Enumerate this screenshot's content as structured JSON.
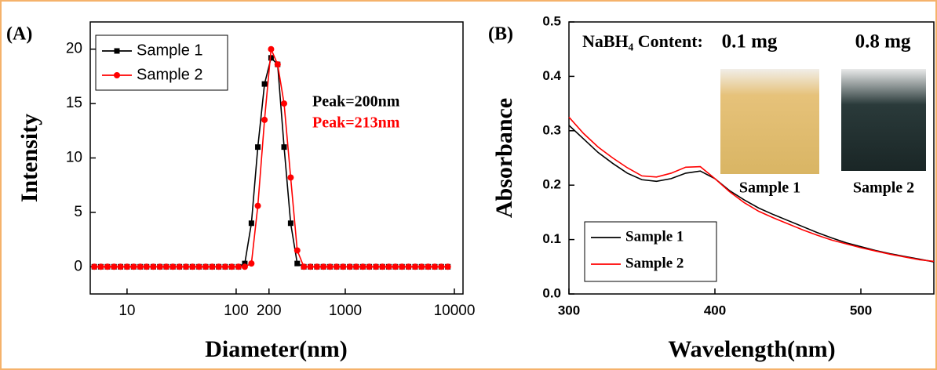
{
  "chart_data": [
    {
      "type": "line",
      "panel_label": "(A)",
      "xlabel": "Diameter(nm)",
      "ylabel": "Intensity",
      "xlog": true,
      "xlim": [
        4.6,
        12000
      ],
      "xticks": [
        10,
        100,
        200,
        1000,
        10000
      ],
      "ylim": [
        -2.5,
        22.5
      ],
      "yticks": [
        0,
        5,
        10,
        15,
        20
      ],
      "legend": "upper left",
      "markers": true,
      "x": [
        5.01,
        5.75,
        6.61,
        7.59,
        8.71,
        10,
        11.5,
        13.2,
        15.1,
        17.4,
        20,
        22.9,
        26.3,
        30.2,
        34.7,
        39.8,
        45.7,
        52.5,
        60.3,
        69.2,
        79.4,
        91.2,
        105,
        120,
        138,
        158,
        182,
        209,
        240,
        275,
        316,
        363,
        417,
        479,
        550,
        631,
        724,
        832,
        955,
        1100,
        1260,
        1450,
        1660,
        1910,
        2190,
        2510,
        2880,
        3310,
        3800,
        4370,
        5010,
        5750,
        6610,
        7590,
        8710
      ],
      "series": [
        {
          "name": "Sample 1",
          "color": "#000000",
          "marker": "square",
          "values": [
            0,
            0,
            0,
            0,
            0,
            0,
            0,
            0,
            0,
            0,
            0,
            0,
            0,
            0,
            0,
            0,
            0,
            0,
            0,
            0,
            0,
            0,
            0,
            0.3,
            4,
            11,
            16.8,
            19.2,
            18.6,
            11,
            4,
            0.3,
            0,
            0,
            0,
            0,
            0,
            0,
            0,
            0,
            0,
            0,
            0,
            0,
            0,
            0,
            0,
            0,
            0,
            0,
            0,
            0,
            0,
            0,
            0
          ]
        },
        {
          "name": "Sample 2",
          "color": "#ff0000",
          "marker": "circle",
          "values": [
            0,
            0,
            0,
            0,
            0,
            0,
            0,
            0,
            0,
            0,
            0,
            0,
            0,
            0,
            0,
            0,
            0,
            0,
            0,
            0,
            0,
            0,
            0,
            0,
            0.3,
            5.6,
            13.5,
            20,
            18.6,
            15,
            8.2,
            1.5,
            0,
            0,
            0,
            0,
            0,
            0,
            0,
            0,
            0,
            0,
            0,
            0,
            0,
            0,
            0,
            0,
            0,
            0,
            0,
            0,
            0,
            0,
            0
          ]
        }
      ],
      "annotations": [
        {
          "text": "Peak=200nm",
          "color": "#000000"
        },
        {
          "text": "Peak=213nm",
          "color": "#ff0000"
        }
      ]
    },
    {
      "type": "line",
      "panel_label": "(B)",
      "xlabel": "Wavelength(nm)",
      "ylabel": "Absorbance",
      "xlog": false,
      "xlim": [
        300,
        550
      ],
      "xticks": [
        300,
        400,
        500
      ],
      "ylim": [
        0,
        0.5
      ],
      "yticks": [
        {
          "value": 0,
          "label": "0.0"
        },
        0.1,
        0.2,
        0.3,
        0.4,
        0.5
      ],
      "legend": "lower left",
      "markers": false,
      "x": [
        300,
        310,
        320,
        330,
        340,
        350,
        360,
        370,
        380,
        390,
        400,
        410,
        420,
        430,
        440,
        450,
        460,
        470,
        480,
        490,
        500,
        510,
        520,
        530,
        540,
        550
      ],
      "series": [
        {
          "name": "Sample 1",
          "color": "#000000",
          "values": [
            0.31,
            0.285,
            0.26,
            0.24,
            0.222,
            0.21,
            0.207,
            0.212,
            0.222,
            0.226,
            0.212,
            0.19,
            0.173,
            0.158,
            0.146,
            0.135,
            0.124,
            0.113,
            0.103,
            0.094,
            0.087,
            0.08,
            0.074,
            0.069,
            0.064,
            0.059
          ]
        },
        {
          "name": "Sample 2",
          "color": "#ff0000",
          "values": [
            0.325,
            0.295,
            0.27,
            0.25,
            0.232,
            0.217,
            0.215,
            0.222,
            0.233,
            0.234,
            0.212,
            0.188,
            0.168,
            0.152,
            0.14,
            0.129,
            0.118,
            0.108,
            0.099,
            0.092,
            0.085,
            0.079,
            0.073,
            0.068,
            0.063,
            0.06
          ]
        }
      ],
      "inset": {
        "title": "NaBH₄ Content:",
        "amounts": [
          "0.1 mg",
          "0.8 mg"
        ],
        "captions": [
          "Sample 1",
          "Sample 2"
        ]
      }
    }
  ]
}
